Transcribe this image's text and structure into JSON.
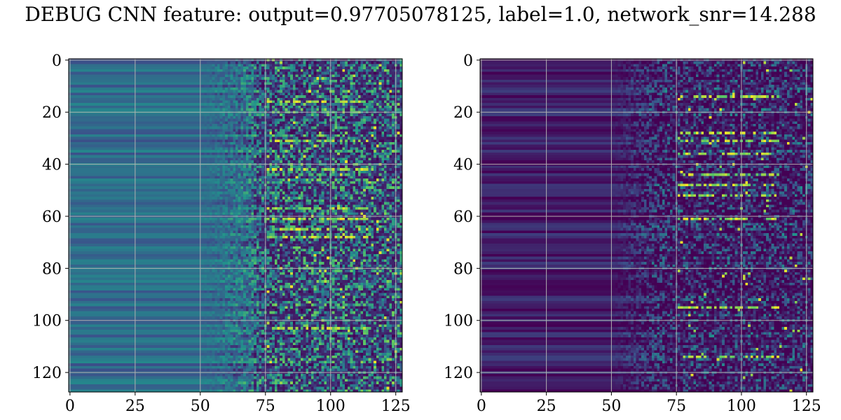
{
  "title": "DEBUG CNN feature: output=0.97705078125, label=1.0, network_snr=14.288",
  "chart_data": [
    {
      "type": "heatmap",
      "colormap": "viridis",
      "rows": 128,
      "cols": 128,
      "xlim": [
        0,
        128
      ],
      "ylim": [
        128,
        0
      ],
      "xticks": [
        0,
        25,
        50,
        75,
        100,
        125
      ],
      "yticks": [
        0,
        20,
        40,
        60,
        80,
        100,
        120
      ],
      "grid": true,
      "description_of_values": "left columns (0-50) smooth horizontal bands of mid intensity; columns 50-75 increasing; columns 75-128 noisy with bright spots near rows 15, 30, 40, 57-67, 103",
      "intensity_profile": {
        "smooth_until_col": 50,
        "noisy_from_col": 70,
        "base_level": 0.35,
        "noise_level": 0.35
      },
      "hotspot_rows": [
        16,
        31,
        42,
        57,
        61,
        65,
        68,
        103
      ]
    },
    {
      "type": "heatmap",
      "colormap": "viridis",
      "rows": 128,
      "cols": 128,
      "xlim": [
        0,
        128
      ],
      "ylim": [
        128,
        0
      ],
      "xticks": [
        0,
        25,
        50,
        75,
        100,
        125
      ],
      "yticks": [
        0,
        20,
        40,
        60,
        80,
        100,
        120
      ],
      "grid": true,
      "description_of_values": "mostly dark purple; left columns smooth faint bands; columns 75-100 noisy with bright yellow points near rows 28-52, 61, 95",
      "intensity_profile": {
        "smooth_until_col": 50,
        "noisy_from_col": 60,
        "base_level": 0.08,
        "noise_level": 0.3
      },
      "hotspot_rows": [
        14,
        28,
        31,
        36,
        44,
        48,
        52,
        61,
        95,
        114
      ]
    }
  ]
}
